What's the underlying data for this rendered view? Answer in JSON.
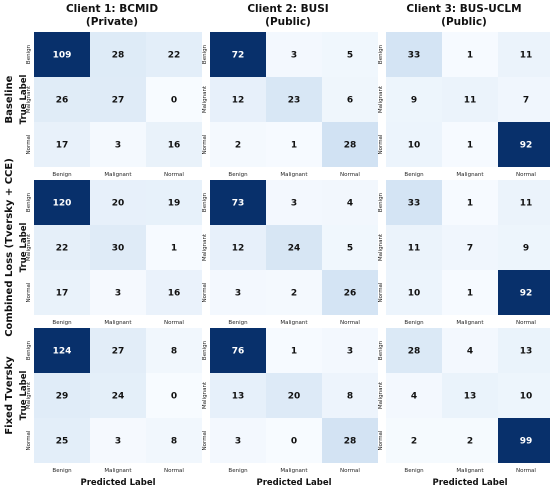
{
  "chart_data": {
    "type": "heatmap",
    "col_titles": [
      [
        "Client 1: BCMID",
        "(Private)"
      ],
      [
        "Client 2: BUSI",
        "(Public)"
      ],
      [
        "Client 3: BUS-UCLM",
        "(Public)"
      ]
    ],
    "row_titles": [
      "Baseline",
      "Combined Loss (Tversky + CCE)",
      "Fixed Tversky"
    ],
    "classes": [
      "Benign",
      "Malignant",
      "Normal"
    ],
    "ylabel": "True Label",
    "xlabel": "Predicted Label",
    "colormap": "Blues",
    "colors": {
      "low": "#f7fbff",
      "mid": "#c6dbef",
      "high": "#08306b"
    },
    "matrices": [
      [
        [
          [
            109,
            28,
            22
          ],
          [
            26,
            27,
            0
          ],
          [
            17,
            3,
            16
          ]
        ],
        [
          [
            72,
            3,
            5
          ],
          [
            12,
            23,
            6
          ],
          [
            2,
            1,
            28
          ]
        ],
        [
          [
            33,
            1,
            11
          ],
          [
            9,
            11,
            7
          ],
          [
            10,
            1,
            92
          ]
        ]
      ],
      [
        [
          [
            120,
            20,
            19
          ],
          [
            22,
            30,
            1
          ],
          [
            17,
            3,
            16
          ]
        ],
        [
          [
            73,
            3,
            4
          ],
          [
            12,
            24,
            5
          ],
          [
            3,
            2,
            26
          ]
        ],
        [
          [
            33,
            1,
            11
          ],
          [
            11,
            7,
            9
          ],
          [
            10,
            1,
            92
          ]
        ]
      ],
      [
        [
          [
            124,
            27,
            8
          ],
          [
            29,
            24,
            0
          ],
          [
            25,
            3,
            8
          ]
        ],
        [
          [
            76,
            1,
            3
          ],
          [
            13,
            20,
            8
          ],
          [
            3,
            0,
            28
          ]
        ],
        [
          [
            28,
            4,
            13
          ],
          [
            4,
            13,
            10
          ],
          [
            2,
            2,
            99
          ]
        ]
      ]
    ]
  }
}
